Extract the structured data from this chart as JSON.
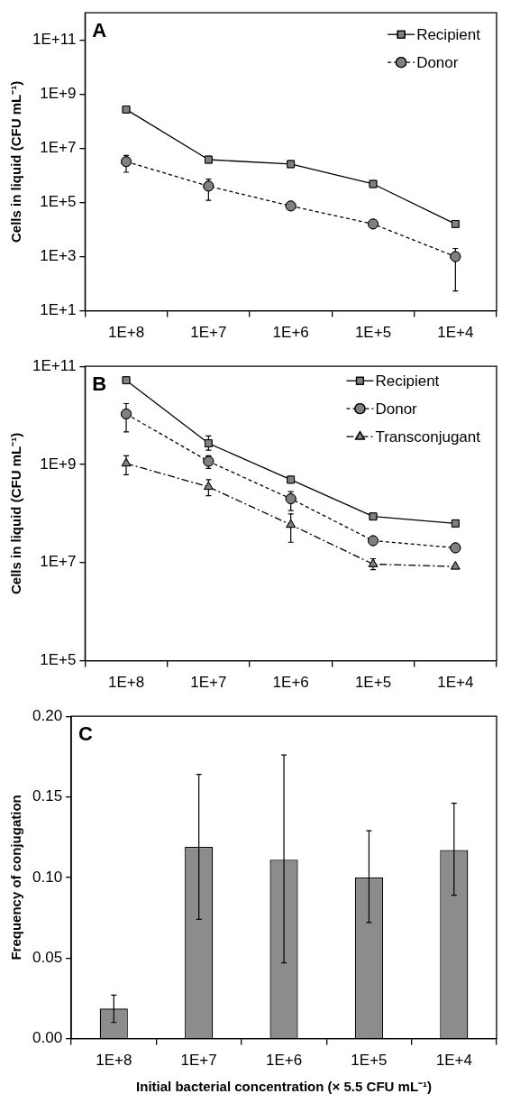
{
  "chart_data": [
    {
      "type": "line",
      "title": "A",
      "ylabel": "Cells in liquid (CFU mL⁻¹)",
      "categories": [
        "1E+8",
        "1E+7",
        "1E+6",
        "1E+5",
        "1E+4"
      ],
      "log": true,
      "ylim": [
        10,
        1000000000000
      ],
      "yticks": [
        {
          "value": 10,
          "label": "1E+1"
        },
        {
          "value": 1000,
          "label": "1E+3"
        },
        {
          "value": 100000,
          "label": "1E+5"
        },
        {
          "value": 10000000,
          "label": "1E+7"
        },
        {
          "value": 1000000000,
          "label": "1E+9"
        },
        {
          "value": 100000000000,
          "label": "1E+11"
        }
      ],
      "legend": "top right",
      "grid": false,
      "series": [
        {
          "name": "Recipient",
          "color": "#808080",
          "marker": "square",
          "line_style": "solid",
          "values": [
            270000000,
            3800000,
            2600000,
            480000,
            16000
          ]
        },
        {
          "name": "Donor",
          "color": "#808080",
          "marker": "circle",
          "line_style": "dashed",
          "values": [
            3200000,
            400000,
            74000,
            16000,
            1000
          ],
          "errors": [
            [
              1300000,
              5400000
            ],
            [
              120000,
              720000
            ],
            null,
            null,
            [
              54,
              2000
            ]
          ]
        }
      ]
    },
    {
      "type": "line",
      "title": "B",
      "ylabel": "Cells in liquid (CFU mL⁻¹)",
      "categories": [
        "1E+8",
        "1E+7",
        "1E+6",
        "1E+5",
        "1E+4"
      ],
      "log": true,
      "ylim": [
        100000,
        100000000000
      ],
      "yticks": [
        {
          "value": 100000,
          "label": "1E+5"
        },
        {
          "value": 10000000,
          "label": "1E+7"
        },
        {
          "value": 1000000000,
          "label": "1E+9"
        },
        {
          "value": 100000000000,
          "label": "1E+11"
        }
      ],
      "legend": "top right",
      "grid": false,
      "series": [
        {
          "name": "Recipient",
          "color": "#808080",
          "marker": "square",
          "line_style": "solid",
          "values": [
            52000000000,
            2700000000,
            490000000,
            87000000,
            63000000
          ],
          "errors": [
            null,
            [
              1950000000,
              3800000000
            ],
            null,
            null,
            null
          ]
        },
        {
          "name": "Donor",
          "color": "#808080",
          "marker": "circle",
          "line_style": "dashed",
          "values": [
            10700000000,
            1160000000,
            200000000,
            28000000,
            20000000
          ],
          "errors": [
            [
              4600000000,
              17400000000
            ],
            [
              830000000,
              1500000000
            ],
            [
              115000000,
              280000000
            ],
            null,
            null
          ]
        },
        {
          "name": "Transconjugant",
          "color": "#808080",
          "marker": "triangle",
          "line_style": "dashdot",
          "values": [
            1050000000,
            350000000,
            59000000,
            9300000,
            8300000
          ],
          "errors": [
            [
              620000000,
              1500000000
            ],
            [
              230000000,
              490000000
            ],
            [
              26000000,
              98000000
            ],
            [
              7200000,
              12000000
            ],
            null
          ]
        }
      ]
    },
    {
      "type": "bar",
      "title": "C",
      "xlabel": "Initial bacterial concentration (× 5.5 CFU mL⁻¹)",
      "ylabel": "Frequency of conjugation",
      "categories": [
        "1E+8",
        "1E+7",
        "1E+6",
        "1E+5",
        "1E+4"
      ],
      "ylim": [
        0,
        0.2
      ],
      "yticks": [
        {
          "value": 0,
          "label": "0.00"
        },
        {
          "value": 0.05,
          "label": "0.05"
        },
        {
          "value": 0.1,
          "label": "0.10"
        },
        {
          "value": 0.15,
          "label": "0.15"
        },
        {
          "value": 0.2,
          "label": "0.20"
        }
      ],
      "grid": false,
      "color": "#8c8c8c",
      "values": [
        0.0186,
        0.119,
        0.111,
        0.1,
        0.117
      ],
      "errors": [
        [
          0.01,
          0.027
        ],
        [
          0.074,
          0.164
        ],
        [
          0.047,
          0.176
        ],
        [
          0.072,
          0.129
        ],
        [
          0.089,
          0.146
        ]
      ]
    }
  ]
}
